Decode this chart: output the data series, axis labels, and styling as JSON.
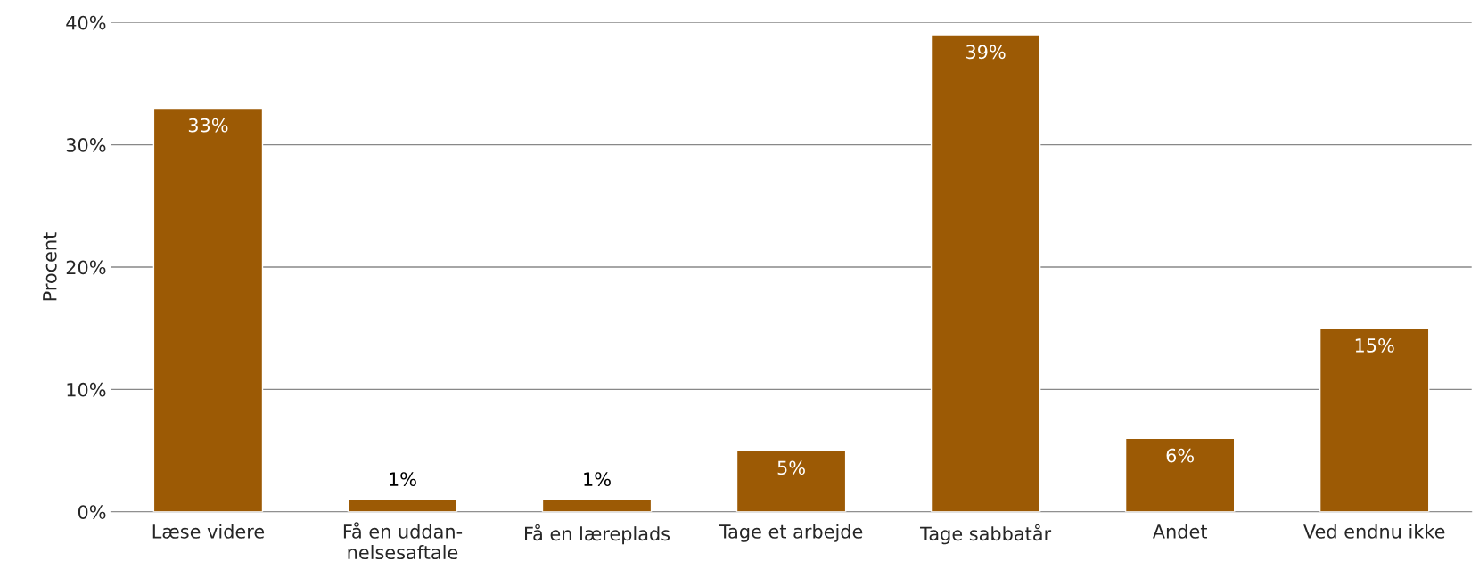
{
  "chart_data": {
    "type": "bar",
    "ylabel": "Procent",
    "categories": [
      "Læse videre",
      "Få en uddan-\nnelsesaftale",
      "Få en læreplads",
      "Tage et arbejde",
      "Tage sabbatår",
      "Andet",
      "Ved endnu ikke"
    ],
    "values": [
      33,
      1,
      1,
      5,
      39,
      6,
      15
    ],
    "value_labels": [
      "33%",
      "1%",
      "1%",
      "5%",
      "39%",
      "6%",
      "15%"
    ],
    "color": "#9c5a05",
    "ylim": [
      0,
      40
    ],
    "yticks": [
      {
        "value": 0,
        "label": "0%"
      },
      {
        "value": 10,
        "label": "10%"
      },
      {
        "value": 20,
        "label": "20%"
      },
      {
        "value": 30,
        "label": "30%"
      },
      {
        "value": 40,
        "label": "40%"
      }
    ],
    "grid": "y",
    "legend": false
  }
}
